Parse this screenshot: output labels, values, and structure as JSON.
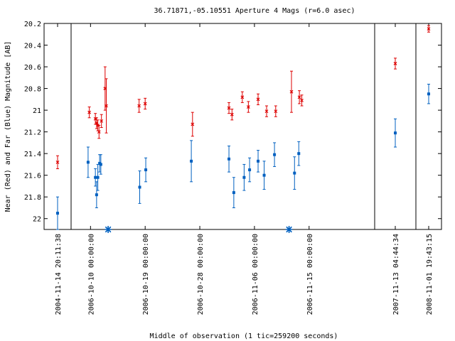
{
  "chart_data": {
    "type": "scatter",
    "title": "36.71871,-05.10551   Aperture 4 Mags (r=6.0 asec)",
    "xlabel": "Middle of observation (1 tic=259200 seconds)",
    "ylabel": "Near (Red) and Far (Blue) Magnitude [AB]",
    "ylim": [
      22.1,
      20.2
    ],
    "y_ticks": [
      "20.2",
      "20.4",
      "20.6",
      "20.8",
      "21",
      "21.2",
      "21.4",
      "21.6",
      "21.8",
      "22"
    ],
    "grid": false,
    "segments": [
      {
        "xlim": [
          0,
          1
        ],
        "tick_labels": [
          {
            "x": 0.5,
            "label": "2004-11-14 20:11:38"
          }
        ]
      },
      {
        "xlim": [
          0,
          50
        ],
        "tick_labels": [
          {
            "x": 3.2,
            "label": "2006-10-10 00:00:00"
          },
          {
            "x": 12.2,
            "label": "2006-10-19 00:00:00"
          },
          {
            "x": 21.2,
            "label": "2006-10-28 00:00:00"
          },
          {
            "x": 30.2,
            "label": "2006-11-06 00:00:00"
          },
          {
            "x": 39.2,
            "label": "2006-11-15 00:00:00"
          }
        ]
      },
      {
        "xlim": [
          0,
          1
        ],
        "tick_labels": [
          {
            "x": 0.5,
            "label": "2007-11-13 04:44:34"
          }
        ]
      },
      {
        "xlim": [
          0,
          1
        ],
        "tick_labels": [
          {
            "x": 0.5,
            "label": "2008-11-01 19:43:15"
          }
        ]
      }
    ],
    "series": [
      {
        "name": "Near (Red)",
        "color": "#dd0000",
        "marker": "x",
        "points": [
          {
            "seg": 0,
            "x": 0.5,
            "y": 21.48,
            "err": 0.06
          },
          {
            "seg": 1,
            "x": 3.0,
            "y": 21.02,
            "err": 0.05
          },
          {
            "seg": 1,
            "x": 4.0,
            "y": 21.08,
            "err": 0.05
          },
          {
            "seg": 1,
            "x": 4.2,
            "y": 21.12,
            "err": 0.05
          },
          {
            "seg": 1,
            "x": 4.4,
            "y": 21.14,
            "err": 0.05
          },
          {
            "seg": 1,
            "x": 4.6,
            "y": 21.2,
            "err": 0.06
          },
          {
            "seg": 1,
            "x": 5.0,
            "y": 21.1,
            "err": 0.06
          },
          {
            "seg": 1,
            "x": 5.6,
            "y": 20.8,
            "err": 0.2
          },
          {
            "seg": 1,
            "x": 5.8,
            "y": 20.96,
            "err": 0.25
          },
          {
            "seg": 1,
            "x": 11.2,
            "y": 20.96,
            "err": 0.06
          },
          {
            "seg": 1,
            "x": 12.2,
            "y": 20.94,
            "err": 0.05
          },
          {
            "seg": 1,
            "x": 20.0,
            "y": 21.13,
            "err": 0.11
          },
          {
            "seg": 1,
            "x": 26.0,
            "y": 20.98,
            "err": 0.05
          },
          {
            "seg": 1,
            "x": 26.5,
            "y": 21.04,
            "err": 0.05
          },
          {
            "seg": 1,
            "x": 28.2,
            "y": 20.88,
            "err": 0.05
          },
          {
            "seg": 1,
            "x": 29.2,
            "y": 20.97,
            "err": 0.05
          },
          {
            "seg": 1,
            "x": 30.8,
            "y": 20.9,
            "err": 0.05
          },
          {
            "seg": 1,
            "x": 32.2,
            "y": 21.01,
            "err": 0.05
          },
          {
            "seg": 1,
            "x": 33.7,
            "y": 21.01,
            "err": 0.05
          },
          {
            "seg": 1,
            "x": 36.3,
            "y": 20.83,
            "err": 0.19
          },
          {
            "seg": 1,
            "x": 37.6,
            "y": 20.88,
            "err": 0.06
          },
          {
            "seg": 1,
            "x": 38.0,
            "y": 20.91,
            "err": 0.05
          },
          {
            "seg": 2,
            "x": 0.5,
            "y": 20.57,
            "err": 0.05
          },
          {
            "seg": 3,
            "x": 0.5,
            "y": 20.25,
            "err": 0.03
          }
        ]
      },
      {
        "name": "Far (Blue)",
        "color": "#0060c0",
        "marker": "square",
        "points": [
          {
            "seg": 0,
            "x": 0.5,
            "y": 21.95,
            "err": 0.15
          },
          {
            "seg": 1,
            "x": 2.8,
            "y": 21.48,
            "err": 0.14
          },
          {
            "seg": 1,
            "x": 4.0,
            "y": 21.62,
            "err": 0.08
          },
          {
            "seg": 1,
            "x": 4.2,
            "y": 21.78,
            "err": 0.12
          },
          {
            "seg": 1,
            "x": 4.4,
            "y": 21.62,
            "err": 0.12
          },
          {
            "seg": 1,
            "x": 4.7,
            "y": 21.49,
            "err": 0.08
          },
          {
            "seg": 1,
            "x": 4.9,
            "y": 21.5,
            "err": 0.09
          },
          {
            "seg": 1,
            "x": 11.3,
            "y": 21.71,
            "err": 0.15
          },
          {
            "seg": 1,
            "x": 12.3,
            "y": 21.55,
            "err": 0.11
          },
          {
            "seg": 1,
            "x": 19.8,
            "y": 21.47,
            "err": 0.19
          },
          {
            "seg": 1,
            "x": 26.0,
            "y": 21.45,
            "err": 0.12
          },
          {
            "seg": 1,
            "x": 26.8,
            "y": 21.76,
            "err": 0.14
          },
          {
            "seg": 1,
            "x": 28.5,
            "y": 21.62,
            "err": 0.12
          },
          {
            "seg": 1,
            "x": 29.4,
            "y": 21.55,
            "err": 0.11
          },
          {
            "seg": 1,
            "x": 30.8,
            "y": 21.47,
            "err": 0.1
          },
          {
            "seg": 1,
            "x": 31.8,
            "y": 21.6,
            "err": 0.13
          },
          {
            "seg": 1,
            "x": 33.5,
            "y": 21.41,
            "err": 0.11
          },
          {
            "seg": 1,
            "x": 36.8,
            "y": 21.58,
            "err": 0.15
          },
          {
            "seg": 1,
            "x": 37.5,
            "y": 21.4,
            "err": 0.11
          },
          {
            "seg": 2,
            "x": 0.5,
            "y": 21.21,
            "err": 0.13
          },
          {
            "seg": 3,
            "x": 0.5,
            "y": 20.85,
            "err": 0.09
          }
        ]
      }
    ],
    "bottom_markers": [
      {
        "seg": 1,
        "x": 6.1,
        "color": "#0060c0",
        "marker": "asterisk"
      },
      {
        "seg": 1,
        "x": 35.9,
        "color": "#0060c0",
        "marker": "asterisk"
      }
    ]
  }
}
